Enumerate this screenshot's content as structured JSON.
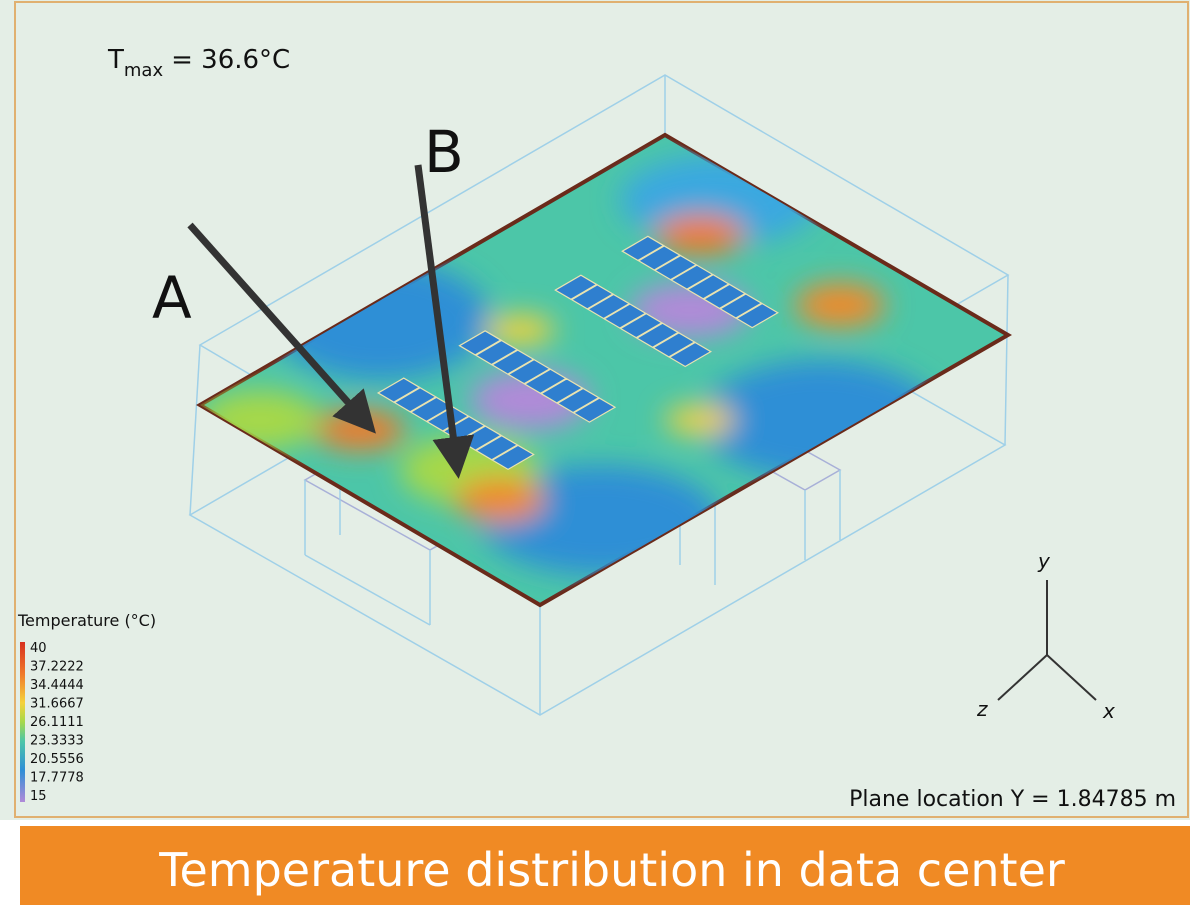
{
  "header": {
    "title": {
      "symbol": "T",
      "subscript": "max",
      "value": "= 36.6°C"
    }
  },
  "labels": {
    "a": "A",
    "b": "B"
  },
  "legend": {
    "title": "Temperature (°C)",
    "ticks": [
      40,
      37.2222,
      34.4444,
      31.6667,
      26.1111,
      23.3333,
      20.5556,
      17.7778,
      15
    ]
  },
  "axes": {
    "y": "y",
    "z": "z",
    "x": "x"
  },
  "plane_location": "Plane location Y = 1.84785 m",
  "caption": "Temperature distribution in data center"
}
